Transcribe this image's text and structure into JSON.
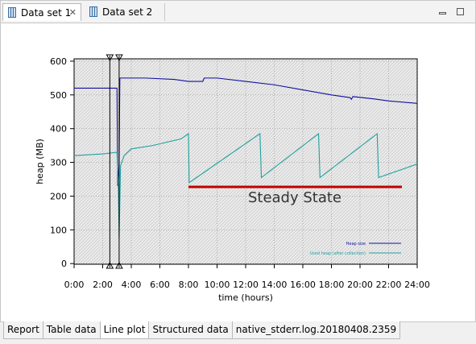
{
  "tabs": [
    "Data set 1",
    "Data set 2"
  ],
  "bottom_tabs": [
    "Report",
    "Table data",
    "Line plot",
    "Structured data",
    "native_stderr.log.20180408.2359"
  ],
  "chart_data": {
    "type": "line",
    "xlabel": "time (hours)",
    "ylabel": "heap (MB)",
    "annotation": "Steady State",
    "xlim": [
      0,
      24
    ],
    "xticks": [
      {
        "value": 0,
        "label": "0:00"
      },
      {
        "value": 2,
        "label": "2:00"
      },
      {
        "value": 4,
        "label": "4:00"
      },
      {
        "value": 6,
        "label": "6:00"
      },
      {
        "value": 8,
        "label": "8:00"
      },
      {
        "value": 10,
        "label": "10:00"
      },
      {
        "value": 12,
        "label": "12:00"
      },
      {
        "value": 14,
        "label": "14:00"
      },
      {
        "value": 16,
        "label": "16:00"
      },
      {
        "value": 18,
        "label": "18:00"
      },
      {
        "value": 20,
        "label": "20:00"
      },
      {
        "value": 22,
        "label": "22:00"
      },
      {
        "value": 24,
        "label": "24:00"
      }
    ],
    "ylim": [
      -2,
      607
    ],
    "yticks": [
      0,
      100,
      200,
      300,
      400,
      500,
      600
    ],
    "grid": true,
    "range_markers": [
      2.5,
      3.15
    ],
    "series": [
      {
        "name": "Heap size",
        "color": "#1010a0",
        "x": [
          0,
          3.0,
          3.05,
          3.15,
          3.2,
          5,
          7,
          8,
          9,
          9.1,
          10,
          12,
          14,
          16,
          18,
          19.3,
          19.4,
          19.5,
          21,
          22,
          24
        ],
        "values": [
          520,
          520,
          230,
          300,
          550,
          550,
          546,
          540,
          540,
          550,
          550,
          540,
          530,
          515,
          500,
          492,
          487,
          495,
          488,
          482,
          475
        ]
      },
      {
        "name": "Used heap (after collection)",
        "color": "#20a0a0",
        "x": [
          0,
          2,
          3.0,
          3.1,
          3.15,
          3.25,
          3.5,
          4,
          5.5,
          7.5,
          8.0,
          8.05,
          13.0,
          13.1,
          17.1,
          17.2,
          21.2,
          21.3,
          24
        ],
        "values": [
          320,
          325,
          330,
          220,
          75,
          290,
          320,
          340,
          350,
          370,
          385,
          240,
          385,
          255,
          385,
          255,
          385,
          255,
          295
        ]
      }
    ]
  }
}
